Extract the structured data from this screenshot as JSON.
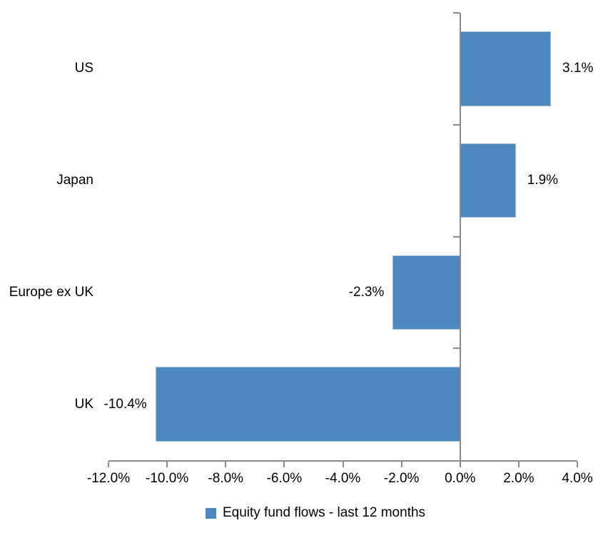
{
  "chart_data": {
    "type": "bar",
    "orientation": "horizontal",
    "title": "",
    "categories": [
      "US",
      "Japan",
      "Europe ex UK",
      "UK"
    ],
    "series": [
      {
        "name": "Equity fund flows - last 12 months",
        "values": [
          3.1,
          1.9,
          -2.3,
          -10.4
        ],
        "data_labels": [
          "3.1%",
          "1.9%",
          "-2.3%",
          "-10.4%"
        ]
      }
    ],
    "xlim": [
      -12,
      4
    ],
    "x_tick_values": [
      -12,
      -10,
      -8,
      -6,
      -4,
      -2,
      0,
      2,
      4
    ],
    "x_tick_labels": [
      "-12.0%",
      "-10.0%",
      "-8.0%",
      "-6.0%",
      "-4.0%",
      "-2.0%",
      "0.0%",
      "2.0%",
      "4.0%"
    ],
    "grid": false,
    "data_label_position": "outside-end",
    "legend": {
      "position": "bottom",
      "entries": [
        {
          "label": "Equity fund flows - last 12 months",
          "color": "#4e87bd"
        }
      ]
    },
    "colors": {
      "bar_fill": "#4e87bd",
      "bar_border": "#9cc0df",
      "axis": "#8a8a8a",
      "text": "#000000",
      "background": "#ffffff"
    }
  }
}
